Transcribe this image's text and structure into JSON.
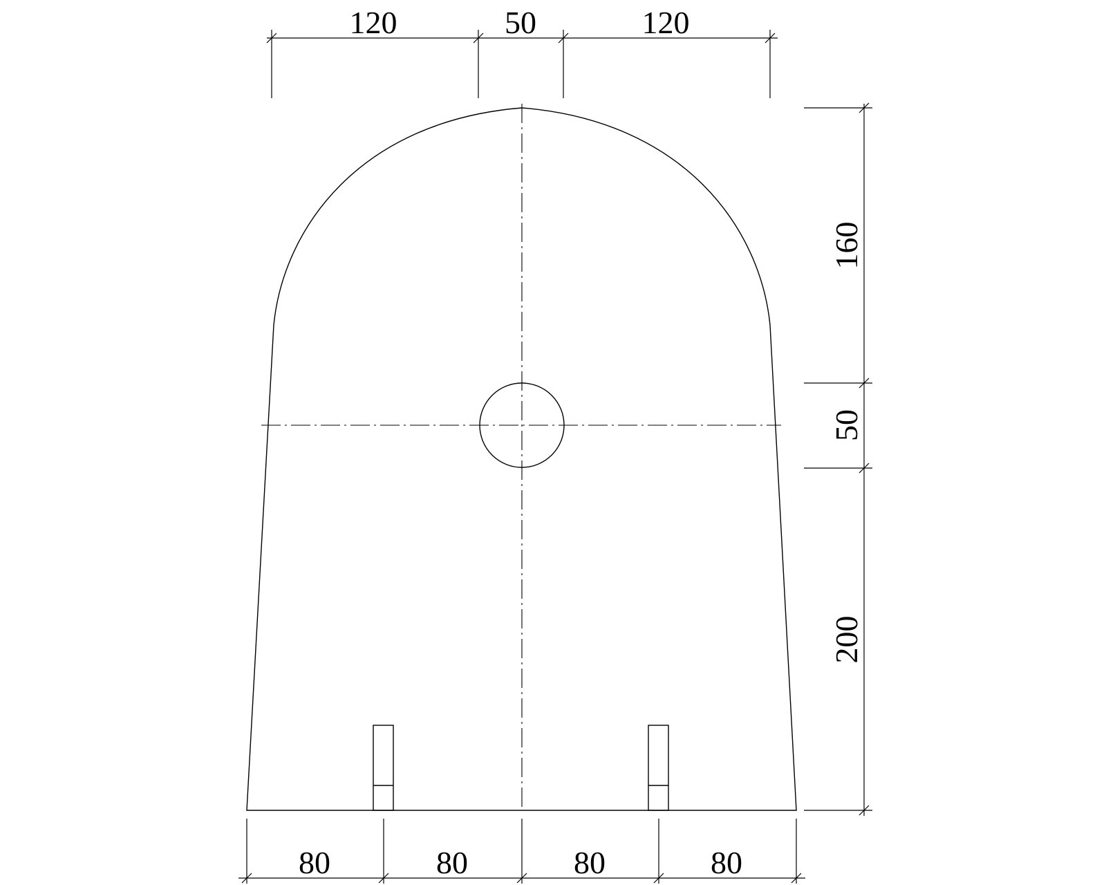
{
  "dimensions": {
    "top": [
      "120",
      "50",
      "120"
    ],
    "bottom": [
      "80",
      "80",
      "80",
      "80"
    ],
    "right": [
      "160",
      "50",
      "200"
    ]
  },
  "colors": {
    "line": "#000000",
    "background": "#ffffff"
  }
}
